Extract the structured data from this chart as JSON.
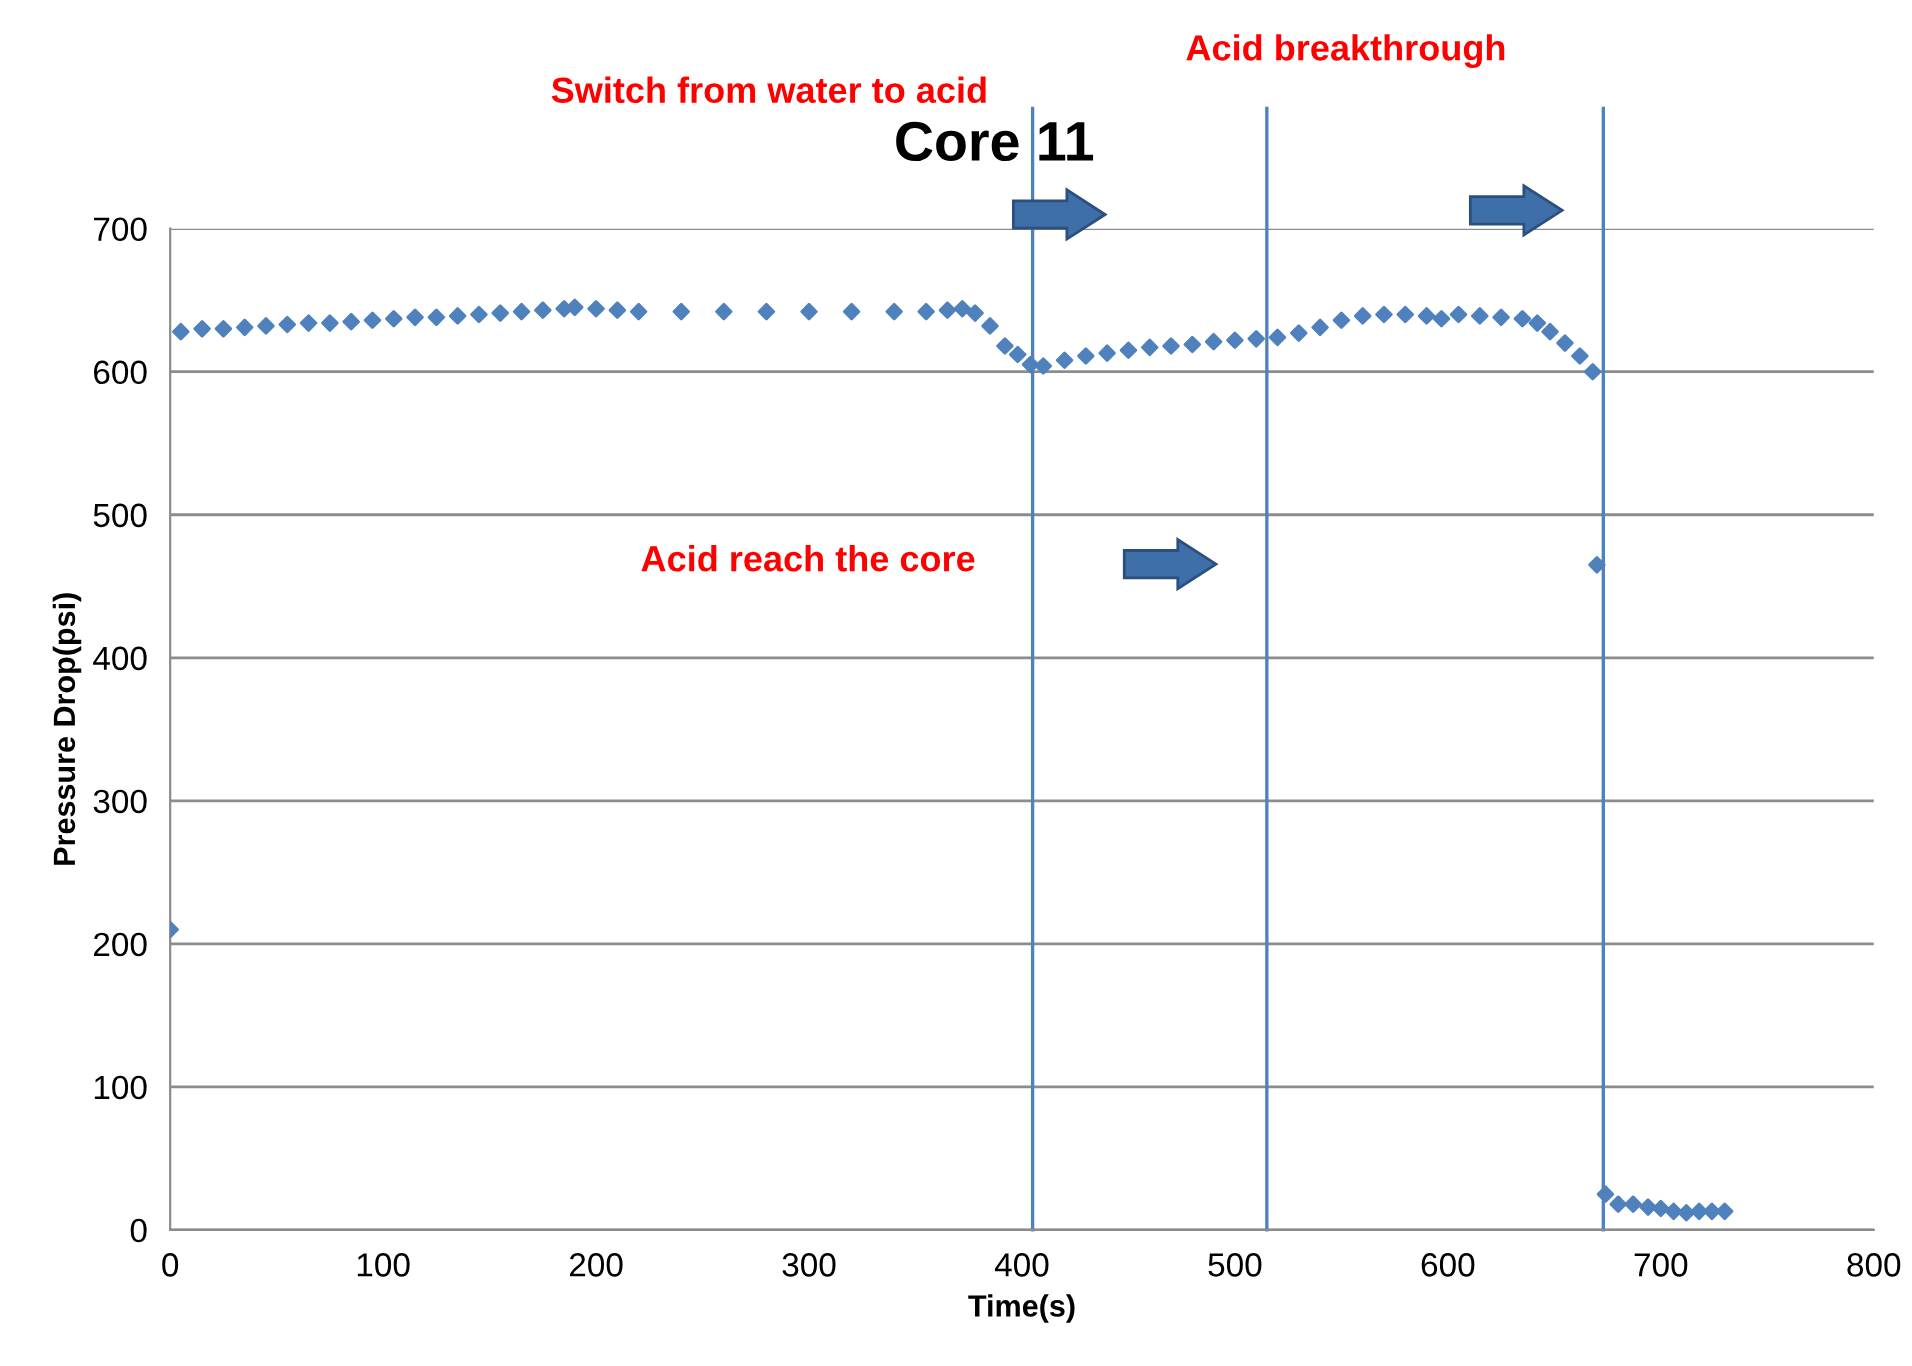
{
  "chart_data": {
    "type": "scatter",
    "title": "Core 11",
    "xlabel": "Time(s)",
    "ylabel": "Pressure Drop(psi)",
    "xlim": [
      0,
      800
    ],
    "xticks": [
      0,
      100,
      200,
      300,
      400,
      500,
      600,
      700,
      800
    ],
    "ylim": [
      0,
      700
    ],
    "yticks": [
      0,
      100,
      200,
      300,
      400,
      500,
      600,
      700
    ],
    "grid": "y",
    "marker": "diamond",
    "legend": false,
    "series": [
      {
        "color": "#4f81bd",
        "x": [
          0,
          5,
          15,
          25,
          35,
          45,
          55,
          65,
          75,
          85,
          95,
          105,
          115,
          125,
          135,
          145,
          155,
          165,
          175,
          185,
          190,
          200,
          210,
          220,
          240,
          260,
          280,
          300,
          320,
          340,
          355,
          365,
          372,
          378,
          385,
          392,
          398,
          404,
          410,
          420,
          430,
          440,
          450,
          460,
          470,
          480,
          490,
          500,
          510,
          520,
          530,
          540,
          550,
          560,
          570,
          580,
          590,
          597,
          605,
          615,
          625,
          635,
          642,
          648,
          655,
          662,
          668,
          670,
          674,
          680,
          687,
          694,
          700,
          706,
          712,
          718,
          724,
          730
        ],
        "values": [
          210,
          628,
          630,
          630,
          631,
          632,
          633,
          634,
          634,
          635,
          636,
          637,
          638,
          638,
          639,
          640,
          641,
          642,
          643,
          644,
          645,
          644,
          643,
          642,
          642,
          642,
          642,
          642,
          642,
          642,
          642,
          643,
          644,
          641,
          632,
          618,
          612,
          605,
          604,
          608,
          611,
          613,
          615,
          617,
          618,
          619,
          621,
          622,
          623,
          624,
          627,
          631,
          636,
          639,
          640,
          640,
          639,
          637,
          640,
          639,
          638,
          637,
          634,
          628,
          620,
          611,
          600,
          465,
          25,
          18,
          18,
          16,
          15,
          13,
          12,
          13,
          13,
          13
        ]
      }
    ],
    "ref_lines": [
      {
        "axis": "x",
        "value": 405,
        "color": "#4f81bd"
      },
      {
        "axis": "x",
        "value": 515,
        "color": "#4f81bd"
      },
      {
        "axis": "x",
        "value": 673,
        "color": "#4f81bd"
      }
    ],
    "annotations": [
      "Switch from water to acid",
      "Acid breakthrough",
      "Acid reach the core"
    ]
  }
}
